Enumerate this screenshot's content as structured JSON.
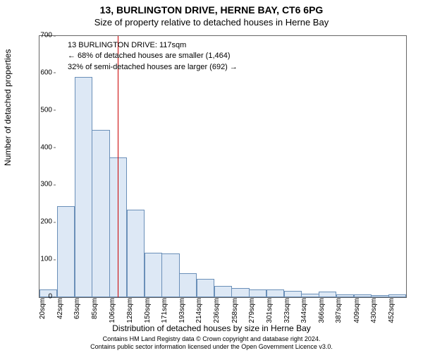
{
  "title": "13, BURLINGTON DRIVE, HERNE BAY, CT6 6PG",
  "subtitle": "Size of property relative to detached houses in Herne Bay",
  "y_axis_label": "Number of detached properties",
  "x_axis_label": "Distribution of detached houses by size in Herne Bay",
  "footer_line1": "Contains HM Land Registry data © Crown copyright and database right 2024.",
  "footer_line2": "Contains public sector information licensed under the Open Government Licence v3.0.",
  "annotation": {
    "line1": "13 BURLINGTON DRIVE: 117sqm",
    "line2": "← 68% of detached houses are smaller (1,464)",
    "line3": "32% of semi-detached houses are larger (692) →"
  },
  "chart": {
    "type": "histogram",
    "background_color": "#ffffff",
    "border_color": "#666666",
    "bar_fill": "#dde8f5",
    "bar_stroke": "#6a8fb8",
    "reference_line_color": "#cc0000",
    "reference_value_sqm": 117,
    "ylim": [
      0,
      700
    ],
    "ytick_step": 100,
    "x_ticks": [
      20,
      42,
      63,
      85,
      106,
      128,
      150,
      171,
      193,
      214,
      236,
      258,
      279,
      301,
      323,
      344,
      366,
      387,
      409,
      430,
      452
    ],
    "x_tick_suffix": "sqm",
    "values": [
      20,
      245,
      590,
      448,
      375,
      235,
      120,
      118,
      65,
      50,
      30,
      25,
      20,
      20,
      18,
      10,
      15,
      8,
      8,
      6,
      8
    ],
    "title_fontsize": 14,
    "subtitle_fontsize": 13,
    "axis_label_fontsize": 12,
    "tick_fontsize": 10,
    "annotation_fontsize": 11,
    "footer_fontsize": 9
  }
}
